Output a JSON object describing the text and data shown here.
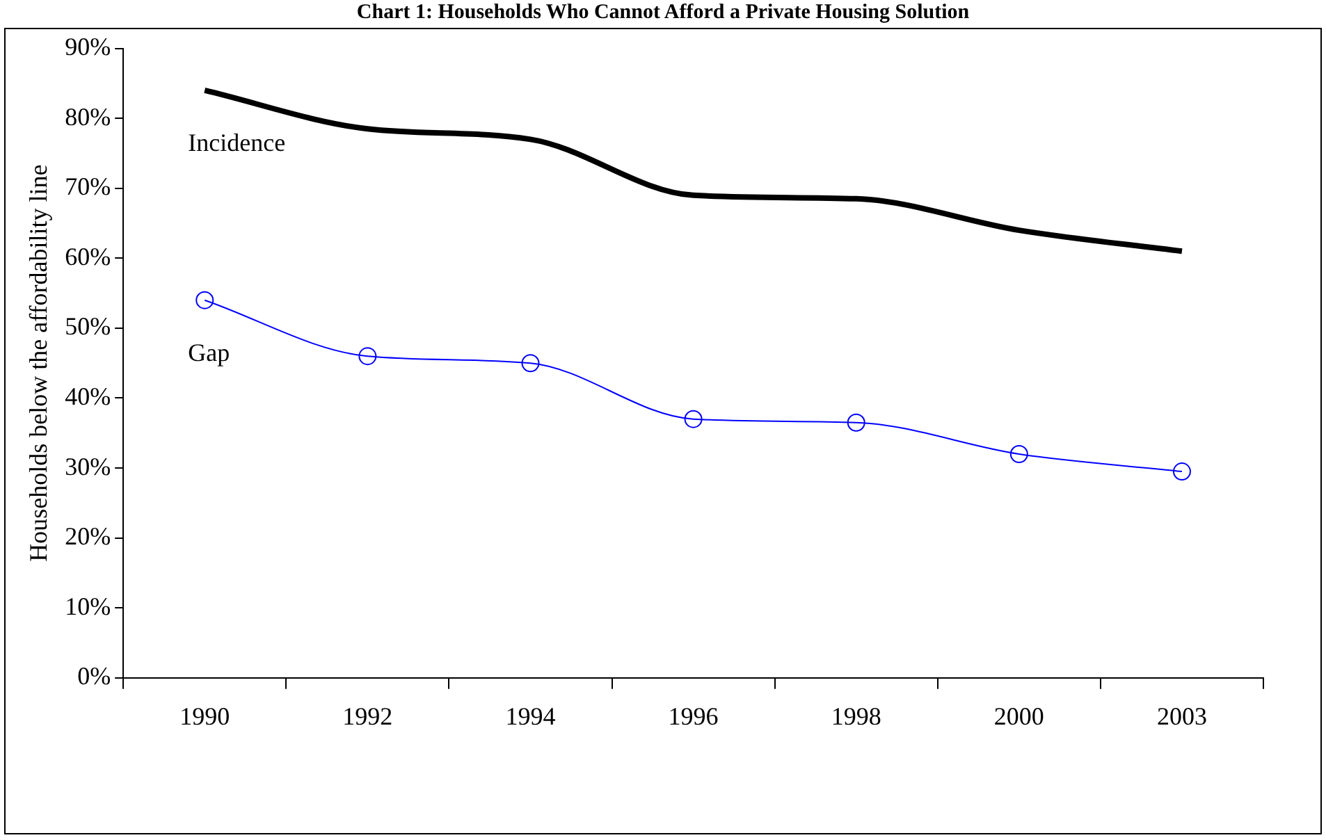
{
  "chart_data": {
    "type": "line",
    "title": "Chart 1: Households Who Cannot Afford a Private Housing Solution",
    "ylabel": "Households below the affordability line",
    "categories": [
      "1990",
      "1992",
      "1994",
      "1996",
      "1998",
      "2000",
      "2003"
    ],
    "series": [
      {
        "name": "Incidence",
        "color": "#000000",
        "values": [
          84,
          78.5,
          77,
          69,
          68.5,
          64,
          61
        ],
        "marker": "none"
      },
      {
        "name": "Gap",
        "color": "#0000ff",
        "values": [
          54,
          46,
          45,
          37,
          36.5,
          32,
          29.5
        ],
        "marker": "circle"
      }
    ],
    "ylim": [
      0,
      90
    ],
    "yticks": [
      {
        "value": 0,
        "label": "0%"
      },
      {
        "value": 10,
        "label": "10%"
      },
      {
        "value": 20,
        "label": "20%"
      },
      {
        "value": 30,
        "label": "30%"
      },
      {
        "value": 40,
        "label": "40%"
      },
      {
        "value": 50,
        "label": "50%"
      },
      {
        "value": 60,
        "label": "60%"
      },
      {
        "value": 70,
        "label": "70%"
      },
      {
        "value": 80,
        "label": "80%"
      },
      {
        "value": 90,
        "label": "90%"
      }
    ],
    "grid": false,
    "legend": false
  }
}
